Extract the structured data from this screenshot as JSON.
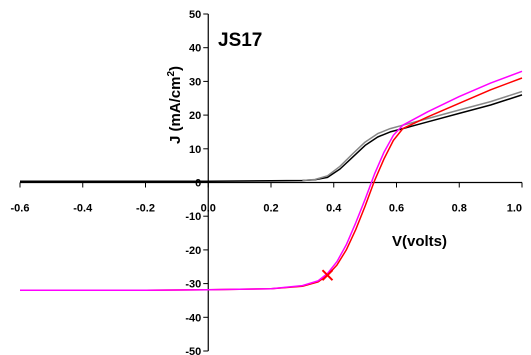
{
  "chart_data": {
    "type": "line",
    "title": "JS17",
    "xlabel": "V(volts)",
    "ylabel_prefix": "J (mA/cm",
    "ylabel_sup": "2",
    "ylabel_suffix": ")",
    "xlim": [
      -0.6,
      1.0
    ],
    "ylim": [
      -50,
      50
    ],
    "x_ticks": [
      -0.6,
      -0.4,
      -0.2,
      0,
      0.2,
      0.4,
      0.6,
      0.8,
      1.0
    ],
    "x_tick_labels": [
      "-0.6",
      "-0.4",
      "-0.2",
      "0.0",
      "0.2",
      "0.4",
      "0.6",
      "0.8",
      "1.0"
    ],
    "y_ticks": [
      -50,
      -40,
      -30,
      -20,
      -10,
      0,
      10,
      20,
      30,
      40,
      50
    ],
    "y_tick_labels": [
      "-50",
      "-40",
      "-30",
      "-20",
      "-10",
      "0",
      "10",
      "20",
      "30",
      "40",
      "50"
    ],
    "grid": false,
    "legend": "none",
    "series": [
      {
        "color": "#000000",
        "x": [
          -0.6,
          -0.2,
          0.0,
          0.2,
          0.3,
          0.34,
          0.38,
          0.42,
          0.46,
          0.5,
          0.54,
          0.58,
          0.62,
          0.7,
          0.8,
          0.9,
          1.0
        ],
        "y": [
          0.4,
          0.4,
          0.4,
          0.5,
          0.6,
          0.8,
          1.5,
          4.0,
          7.5,
          11.0,
          13.5,
          15.0,
          16.0,
          18.0,
          20.5,
          23.0,
          26.0
        ]
      },
      {
        "color": "#888888",
        "x": [
          0.3,
          0.34,
          0.38,
          0.42,
          0.46,
          0.5,
          0.54,
          0.58,
          0.62,
          0.7,
          0.8,
          0.9,
          1.0
        ],
        "y": [
          0.6,
          0.9,
          2.0,
          4.8,
          8.5,
          12.0,
          14.5,
          16.0,
          17.0,
          19.0,
          21.5,
          24.0,
          27.0
        ]
      },
      {
        "color": "#ff0000",
        "x": [
          -0.6,
          -0.2,
          0.0,
          0.2,
          0.3,
          0.35,
          0.38,
          0.41,
          0.44,
          0.47,
          0.5,
          0.53,
          0.56,
          0.59,
          0.62,
          0.7,
          0.8,
          0.9,
          1.0
        ],
        "y": [
          -32.0,
          -32.0,
          -31.8,
          -31.5,
          -30.8,
          -29.5,
          -27.5,
          -24.5,
          -20.0,
          -14.0,
          -7.0,
          0.5,
          7.0,
          12.5,
          16.0,
          19.5,
          23.5,
          27.5,
          31.0
        ]
      },
      {
        "color": "#ff00ff",
        "x": [
          -0.6,
          -0.2,
          0.0,
          0.2,
          0.3,
          0.35,
          0.38,
          0.41,
          0.44,
          0.47,
          0.5,
          0.53,
          0.56,
          0.59,
          0.62,
          0.7,
          0.8,
          0.9,
          1.0
        ],
        "y": [
          -32.0,
          -32.0,
          -31.8,
          -31.5,
          -30.6,
          -29.2,
          -27.0,
          -23.5,
          -18.5,
          -12.0,
          -5.0,
          2.5,
          9.0,
          14.0,
          17.0,
          21.0,
          25.5,
          29.5,
          33.0
        ]
      }
    ],
    "marker": {
      "x": 0.38,
      "y": -27.5,
      "color": "#ff0000",
      "symbol": "x"
    }
  }
}
